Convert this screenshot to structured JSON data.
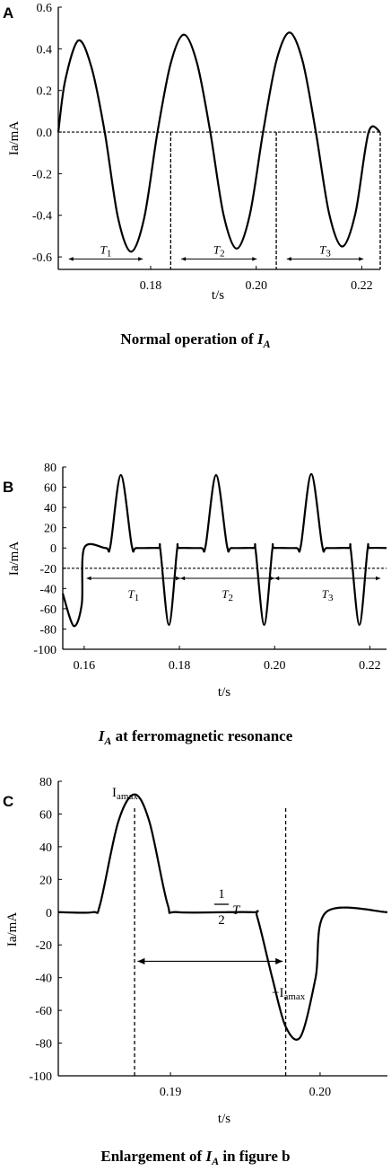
{
  "chart_data": [
    {
      "panel": "A",
      "type": "line",
      "caption": {
        "prefix": "Normal operation of ",
        "var": "I",
        "sub": "A"
      },
      "xlabel": "t/s",
      "ylabel": "Ia/mA",
      "xlim": [
        0.1625,
        0.2235
      ],
      "ylim": [
        -0.66,
        0.6
      ],
      "xticks": [
        0.18,
        0.2,
        0.22
      ],
      "xtick_labels": [
        "0.18",
        "0.20",
        "0.22"
      ],
      "yticks": [
        0.6,
        0.4,
        0.2,
        0.0,
        -0.2,
        -0.4,
        -0.6
      ],
      "ytick_labels": [
        "0.6",
        "0.4",
        "0.2",
        "0.0",
        "-0.2",
        "-0.4",
        "-0.6"
      ],
      "series": [
        {
          "x": [
            0.1625,
            0.1638,
            0.1663,
            0.1688,
            0.1713,
            0.1738,
            0.1763,
            0.1788,
            0.1813,
            0.1838,
            0.1863,
            0.1888,
            0.1913,
            0.1938,
            0.1963,
            0.1988,
            0.2013,
            0.2038,
            0.2063,
            0.2088,
            0.2113,
            0.2138,
            0.2163,
            0.2188,
            0.2213,
            0.2235
          ],
          "y": [
            0.0,
            0.247,
            0.44,
            0.31,
            0.0,
            -0.41,
            -0.575,
            -0.41,
            0.0,
            0.33,
            0.468,
            0.33,
            0.0,
            -0.396,
            -0.56,
            -0.396,
            0.0,
            0.34,
            0.478,
            0.34,
            0.0,
            -0.39,
            -0.55,
            -0.39,
            0.0,
            0.0
          ]
        }
      ],
      "reference_lines": {
        "h": 0.0,
        "v": [
          0.1838,
          0.2038,
          0.2235
        ]
      },
      "periods": [
        {
          "label": "T",
          "sub": "1",
          "x0": 0.1645,
          "x1": 0.1785,
          "y": -0.61
        },
        {
          "label": "T",
          "sub": "2",
          "x0": 0.1858,
          "x1": 0.2001,
          "y": -0.61
        },
        {
          "label": "T",
          "sub": "3",
          "x0": 0.2058,
          "x1": 0.2203,
          "y": -0.61
        }
      ]
    },
    {
      "panel": "B",
      "type": "line",
      "caption": {
        "prefix": "",
        "var": "I",
        "sub": "A",
        "suffix": " at ferromagnetic resonance"
      },
      "xlabel": "t/s",
      "ylabel": "Ia/mA",
      "xlim": [
        0.1555,
        0.2235
      ],
      "ylim": [
        -100,
        80
      ],
      "xticks": [
        0.16,
        0.18,
        0.2,
        0.22
      ],
      "xtick_labels": [
        "0.16",
        "0.18",
        "0.20",
        "0.22"
      ],
      "yticks": [
        80,
        60,
        40,
        20,
        0,
        -20,
        -40,
        -60,
        -80,
        -100
      ],
      "ytick_labels": [
        "80",
        "60",
        "40",
        "20",
        "0",
        "-20",
        "-40",
        "-60",
        "-80",
        "-100"
      ],
      "series": [
        {
          "x": [
            0.1555,
            0.1578,
            0.1595,
            0.16,
            0.1645,
            0.1655,
            0.1677,
            0.17,
            0.171,
            0.1755,
            0.176,
            0.1778,
            0.1795,
            0.18,
            0.1845,
            0.1855,
            0.1877,
            0.19,
            0.191,
            0.1955,
            0.196,
            0.1978,
            0.1995,
            0.2,
            0.2045,
            0.2055,
            0.2077,
            0.21,
            0.211,
            0.2155,
            0.216,
            0.2178,
            0.2195,
            0.22,
            0.2235
          ],
          "y": [
            -45,
            -77,
            -55,
            0,
            0,
            2,
            72,
            2,
            0,
            0,
            -2,
            -76,
            -2,
            0,
            0,
            2,
            72,
            2,
            0,
            0,
            -2,
            -76,
            -2,
            0,
            0,
            2,
            73,
            2,
            0,
            0,
            -2,
            -76,
            -2,
            0,
            0
          ]
        }
      ],
      "reference_lines": {
        "h": -20
      },
      "periods": [
        {
          "label": "T",
          "sub": "1",
          "x0": 0.1605,
          "x1": 0.1802,
          "y": -30
        },
        {
          "label": "T",
          "sub": "2",
          "x0": 0.1802,
          "x1": 0.2,
          "y": -30
        },
        {
          "label": "T",
          "sub": "3",
          "x0": 0.2,
          "x1": 0.2222,
          "y": -30
        }
      ]
    },
    {
      "panel": "C",
      "type": "line",
      "caption": {
        "prefix": "Enlargement of ",
        "var": "I",
        "sub": "A",
        "suffix": " in figure b"
      },
      "xlabel": "t/s",
      "ylabel": "Ia/mA",
      "xlim": [
        0.1825,
        0.2045
      ],
      "ylim": [
        -100,
        80
      ],
      "xticks": [
        0.19,
        0.2
      ],
      "xtick_labels": [
        "0.19",
        "0.20"
      ],
      "yticks": [
        80,
        60,
        40,
        20,
        0,
        -20,
        -40,
        -60,
        -80,
        -100
      ],
      "ytick_labels": [
        "80",
        "60",
        "40",
        "20",
        "0",
        "-20",
        "-40",
        "-60",
        "-80",
        "-100"
      ],
      "series": [
        {
          "x": [
            0.1825,
            0.1848,
            0.1853,
            0.1865,
            0.1876,
            0.1886,
            0.1898,
            0.1905,
            0.1954,
            0.1958,
            0.1968,
            0.1977,
            0.1987,
            0.1997,
            0.2004,
            0.2045
          ],
          "y": [
            0,
            0,
            5,
            55,
            72,
            55,
            5,
            0,
            0,
            -3,
            -40,
            -70,
            -76,
            -40,
            0,
            0
          ]
        }
      ],
      "vlines": [
        0.1876,
        0.1977
      ],
      "arrow": {
        "x0": 0.1878,
        "x1": 0.1975,
        "y": -30,
        "label_num": "1",
        "label_den": "2",
        "label_var": "T"
      },
      "peak_labels": {
        "max": "I",
        "max_sub": "amax",
        "min": "−I",
        "min_sub": "amax"
      }
    }
  ]
}
